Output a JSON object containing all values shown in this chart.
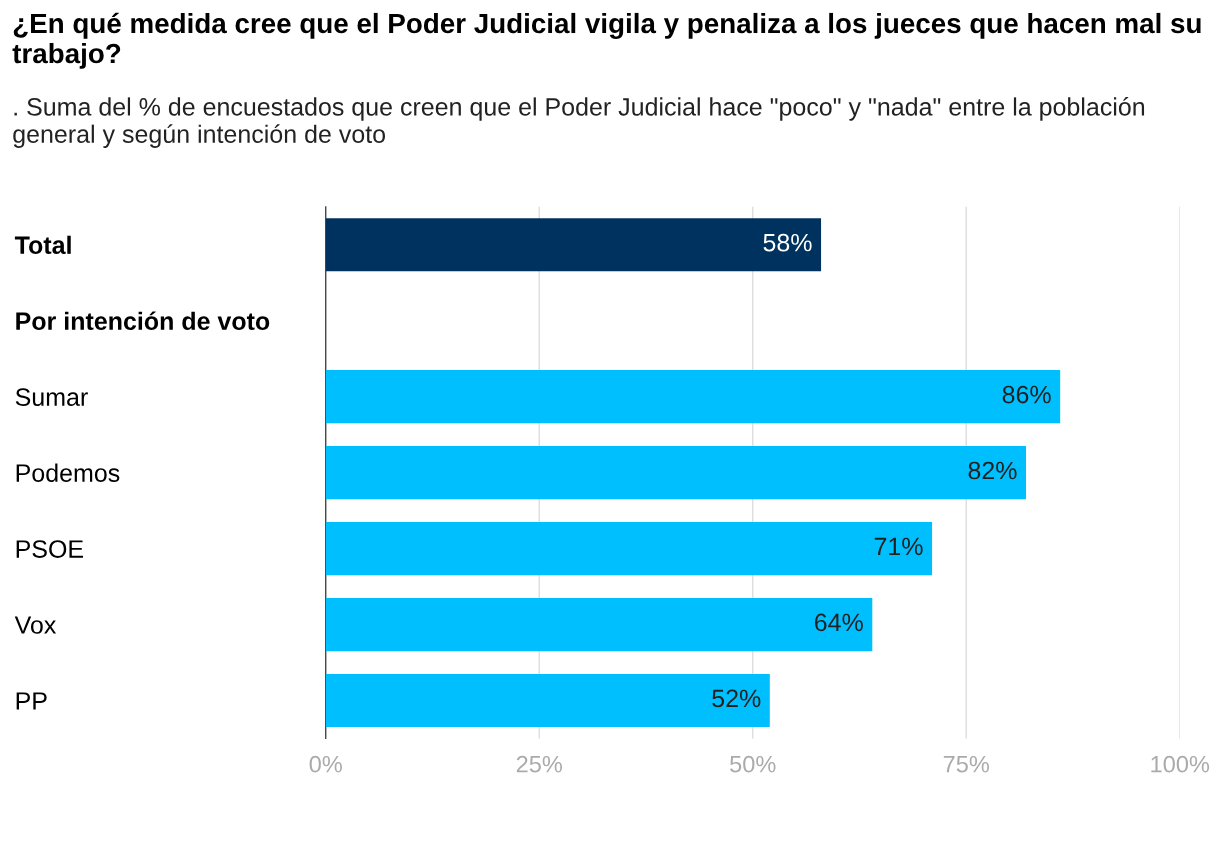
{
  "chart_data": {
    "type": "bar",
    "orientation": "horizontal",
    "title": "¿En qué medida cree que el Poder Judicial vigila y penaliza a los jueces que hacen mal su trabajo?",
    "subtitle": ". Suma del % de encuestados que creen que el Poder Judicial hace \"poco\" y \"nada\" entre la población general y según intención de voto",
    "categories": [
      "Total",
      "Por intención de voto",
      "Sumar",
      "Podemos",
      "PSOE",
      "Vox",
      "PP"
    ],
    "values": [
      58,
      null,
      86,
      82,
      71,
      64,
      52
    ],
    "colors": [
      "#00325f",
      "#00bfff",
      "#00bfff",
      "#00bfff",
      "#00bfff",
      "#00bfff",
      "#00bfff"
    ],
    "value_labels": [
      "58%",
      null,
      "86%",
      "82%",
      "71%",
      "64%",
      "52%"
    ],
    "xlim": [
      0,
      100
    ],
    "xticks": [
      {
        "value": 0,
        "label": "0%"
      },
      {
        "value": 25,
        "label": "25%"
      },
      {
        "value": 50,
        "label": "50%"
      },
      {
        "value": 75,
        "label": "75%"
      },
      {
        "value": 100,
        "label": "100%"
      }
    ],
    "grid": "x",
    "legend": false
  }
}
